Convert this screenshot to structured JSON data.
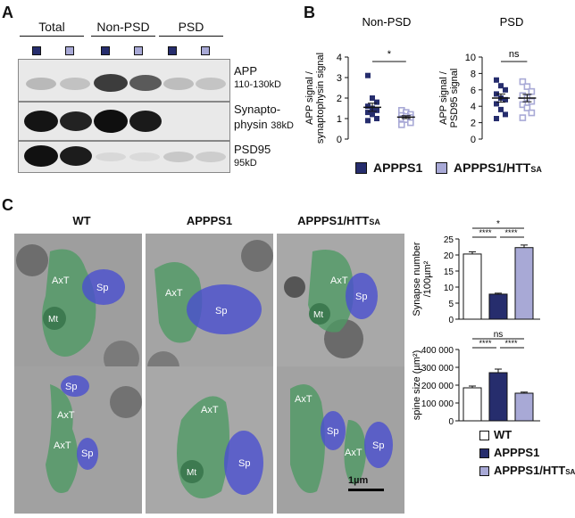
{
  "panels": {
    "a": "A",
    "b": "B",
    "c": "C"
  },
  "panel_a": {
    "groups": [
      "Total",
      "Non-PSD",
      "PSD"
    ],
    "blots": [
      {
        "name": "APP",
        "detail": "110-130kD"
      },
      {
        "name": "Synapto-",
        "name2": "physin",
        "detail": "38kD"
      },
      {
        "name": "PSD95",
        "detail": "95kD"
      }
    ]
  },
  "panel_b": {
    "legend": [
      {
        "label": "APPPS1",
        "color": "#262d6d"
      },
      {
        "label": "APPPS1/HTT",
        "sub": "SA",
        "color": "#a8a9d6"
      }
    ]
  },
  "panel_c": {
    "columns": [
      {
        "label": "WT"
      },
      {
        "label": "APPPS1"
      },
      {
        "label": "APPPS1/HTT",
        "sub": "SA"
      }
    ],
    "em_labels": {
      "axt": "AxT",
      "sp": "Sp",
      "mt": "Mt"
    },
    "scale_bar": "1µm",
    "legend": [
      {
        "label": "WT",
        "color": "#ffffff"
      },
      {
        "label": "APPPS1",
        "color": "#262d6d"
      },
      {
        "label": "APPPS1/HTT",
        "sub": "SA",
        "color": "#a8a9d6"
      }
    ]
  },
  "chart_data": [
    {
      "type": "scatter",
      "title": "Non-PSD",
      "ylabel": "APP signal / synaptophysin signal",
      "ylim": [
        0,
        4
      ],
      "yticks": [
        "0",
        "1",
        "2",
        "3",
        "4"
      ],
      "series": [
        {
          "name": "APPPS1",
          "color": "#262d6d",
          "values": [
            3.1,
            2.0,
            1.8,
            1.6,
            1.5,
            1.4,
            1.3,
            1.2,
            1.0,
            0.9
          ],
          "mean": 1.55,
          "sem": 0.2
        },
        {
          "name": "APPPS1/HTTSA",
          "color": "#a8a9d6",
          "values": [
            1.4,
            1.3,
            1.2,
            1.15,
            1.1,
            1.05,
            1.0,
            0.95,
            0.8,
            0.7
          ],
          "mean": 1.07,
          "sem": 0.07
        }
      ],
      "significance": "*"
    },
    {
      "type": "scatter",
      "title": "PSD",
      "ylabel": "APP signal / PSD95 signal",
      "ylim": [
        0,
        10
      ],
      "yticks": [
        "0",
        "2",
        "4",
        "6",
        "8",
        "10"
      ],
      "series": [
        {
          "name": "APPPS1",
          "color": "#262d6d",
          "values": [
            7.2,
            6.5,
            6.0,
            5.5,
            5.0,
            4.8,
            4.3,
            3.6,
            3.0,
            2.5
          ],
          "mean": 5.0,
          "sem": 0.5
        },
        {
          "name": "APPPS1/HTTSA",
          "color": "#a8a9d6",
          "values": [
            7.0,
            6.4,
            5.8,
            5.3,
            5.0,
            4.6,
            4.2,
            3.8,
            3.2,
            2.6
          ],
          "mean": 5.0,
          "sem": 0.45
        }
      ],
      "significance": "ns"
    },
    {
      "type": "bar",
      "ylabel": "Synapse number /100µm²",
      "ylim": [
        0,
        25
      ],
      "yticks": [
        "0",
        "5",
        "10",
        "15",
        "20",
        "25"
      ],
      "categories": [
        "WT",
        "APPPS1",
        "APPPS1/HTTSA"
      ],
      "values": [
        20.3,
        7.8,
        22.3
      ],
      "errors": [
        0.7,
        0.3,
        0.8
      ],
      "colors": [
        "#ffffff",
        "#262d6d",
        "#a8a9d6"
      ],
      "significance": [
        "*",
        "****",
        "****"
      ]
    },
    {
      "type": "bar",
      "ylabel": "spine size (µm²)",
      "ylim": [
        0,
        400000
      ],
      "yticks": [
        "0",
        "100 000",
        "200 000",
        "300 000",
        "400 000"
      ],
      "categories": [
        "WT",
        "APPPS1",
        "APPPS1/HTTSA"
      ],
      "values": [
        185000,
        270000,
        155000
      ],
      "errors": [
        10000,
        20000,
        6000
      ],
      "colors": [
        "#ffffff",
        "#262d6d",
        "#a8a9d6"
      ],
      "significance": [
        "ns",
        "****",
        "****"
      ]
    }
  ]
}
